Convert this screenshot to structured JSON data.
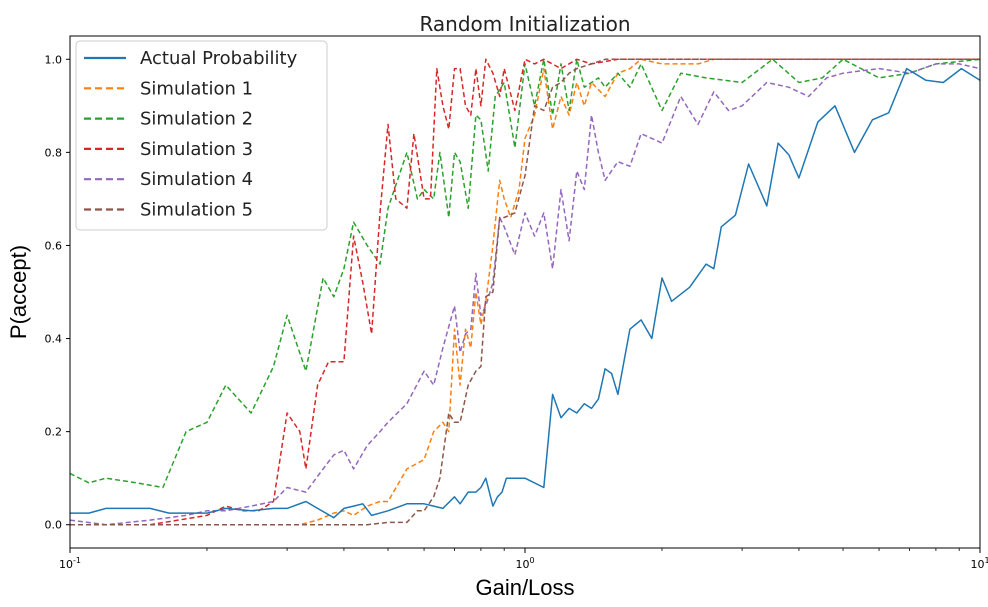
{
  "chart_data": {
    "type": "line",
    "title": "Random Initialization",
    "xlabel": "Gain/Loss",
    "ylabel": "P(accept)",
    "xscale": "log",
    "xlim": [
      0.1,
      10
    ],
    "ylim": [
      -0.05,
      1.05
    ],
    "grid": false,
    "legend_position": "upper-left",
    "x_tick_labels": [
      "10^-1",
      "10^0",
      "10^1"
    ],
    "y_tick_labels": [
      "0.0",
      "0.2",
      "0.4",
      "0.6",
      "0.8",
      "1.0"
    ],
    "series": [
      {
        "name": "Actual Probability",
        "color": "#1f77b4",
        "style": "solid",
        "x": [
          0.1,
          0.11,
          0.12,
          0.135,
          0.15,
          0.165,
          0.18,
          0.2,
          0.22,
          0.25,
          0.28,
          0.3,
          0.33,
          0.35,
          0.38,
          0.4,
          0.42,
          0.44,
          0.46,
          0.5,
          0.55,
          0.6,
          0.63,
          0.66,
          0.7,
          0.72,
          0.75,
          0.78,
          0.8,
          0.82,
          0.85,
          0.87,
          0.89,
          0.91,
          1.0,
          1.1,
          1.15,
          1.2,
          1.25,
          1.3,
          1.35,
          1.4,
          1.45,
          1.5,
          1.55,
          1.6,
          1.7,
          1.8,
          1.9,
          2.0,
          2.1,
          2.3,
          2.5,
          2.6,
          2.7,
          2.9,
          3.1,
          3.4,
          3.6,
          3.8,
          4.0,
          4.4,
          4.8,
          5.3,
          5.8,
          6.3,
          6.9,
          7.6,
          8.3,
          9.1,
          10
        ],
        "y": [
          0.025,
          0.025,
          0.035,
          0.035,
          0.035,
          0.025,
          0.025,
          0.025,
          0.035,
          0.03,
          0.035,
          0.035,
          0.05,
          0.035,
          0.015,
          0.035,
          0.04,
          0.045,
          0.02,
          0.03,
          0.045,
          0.045,
          0.04,
          0.035,
          0.06,
          0.045,
          0.07,
          0.07,
          0.08,
          0.1,
          0.04,
          0.06,
          0.07,
          0.1,
          0.1,
          0.08,
          0.28,
          0.23,
          0.25,
          0.24,
          0.26,
          0.25,
          0.27,
          0.335,
          0.325,
          0.28,
          0.42,
          0.44,
          0.4,
          0.53,
          0.48,
          0.51,
          0.56,
          0.55,
          0.64,
          0.665,
          0.775,
          0.685,
          0.82,
          0.795,
          0.745,
          0.865,
          0.9,
          0.8,
          0.87,
          0.885,
          0.98,
          0.955,
          0.95,
          0.98,
          0.955
        ]
      },
      {
        "name": "Simulation 1",
        "color": "#ff7f0e",
        "style": "dashed",
        "x": [
          0.1,
          0.15,
          0.2,
          0.25,
          0.3,
          0.32,
          0.35,
          0.38,
          0.4,
          0.42,
          0.45,
          0.48,
          0.5,
          0.55,
          0.6,
          0.63,
          0.66,
          0.68,
          0.7,
          0.72,
          0.74,
          0.76,
          0.78,
          0.8,
          0.82,
          0.85,
          0.88,
          0.9,
          0.93,
          0.97,
          1.0,
          1.05,
          1.1,
          1.15,
          1.2,
          1.25,
          1.3,
          1.35,
          1.4,
          1.5,
          1.6,
          1.7,
          1.8,
          2.0,
          2.2,
          2.4,
          2.6,
          3,
          4,
          5,
          7,
          10
        ],
        "y": [
          0.0,
          0.0,
          0.0,
          0.0,
          0.0,
          0.0,
          0.01,
          0.025,
          0.03,
          0.02,
          0.04,
          0.05,
          0.05,
          0.12,
          0.14,
          0.2,
          0.22,
          0.2,
          0.42,
          0.3,
          0.42,
          0.38,
          0.5,
          0.43,
          0.48,
          0.6,
          0.74,
          0.7,
          0.66,
          0.72,
          0.83,
          0.88,
          0.98,
          0.85,
          0.92,
          0.88,
          0.95,
          0.9,
          0.95,
          0.92,
          0.97,
          0.98,
          1.0,
          0.99,
          0.99,
          0.99,
          1.0,
          1.0,
          1.0,
          1.0,
          1.0,
          1.0
        ]
      },
      {
        "name": "Simulation 2",
        "color": "#2ca02c",
        "style": "dashed",
        "x": [
          0.1,
          0.11,
          0.12,
          0.14,
          0.16,
          0.18,
          0.2,
          0.22,
          0.25,
          0.28,
          0.3,
          0.33,
          0.36,
          0.38,
          0.4,
          0.42,
          0.45,
          0.48,
          0.5,
          0.55,
          0.58,
          0.6,
          0.63,
          0.65,
          0.68,
          0.7,
          0.72,
          0.75,
          0.78,
          0.8,
          0.83,
          0.86,
          0.9,
          0.95,
          1.0,
          1.05,
          1.1,
          1.15,
          1.2,
          1.25,
          1.3,
          1.35,
          1.4,
          1.45,
          1.5,
          1.6,
          1.7,
          1.8,
          2.0,
          2.2,
          2.5,
          3.0,
          3.5,
          4.0,
          4.5,
          5.0,
          6.0,
          7.0,
          8.0,
          10
        ],
        "y": [
          0.11,
          0.09,
          0.1,
          0.09,
          0.08,
          0.2,
          0.22,
          0.3,
          0.24,
          0.34,
          0.45,
          0.33,
          0.53,
          0.49,
          0.55,
          0.65,
          0.6,
          0.56,
          0.68,
          0.8,
          0.7,
          0.72,
          0.7,
          0.8,
          0.66,
          0.8,
          0.78,
          0.68,
          0.88,
          0.87,
          0.76,
          0.92,
          0.95,
          0.81,
          0.99,
          0.9,
          1.0,
          0.88,
          0.99,
          0.89,
          1.0,
          0.94,
          0.95,
          0.96,
          0.94,
          0.97,
          0.94,
          0.99,
          0.89,
          0.97,
          0.96,
          0.95,
          1.0,
          0.95,
          0.96,
          1.0,
          0.96,
          0.97,
          0.99,
          1.0
        ]
      },
      {
        "name": "Simulation 3",
        "color": "#d62728",
        "style": "dashed",
        "x": [
          0.1,
          0.15,
          0.2,
          0.22,
          0.24,
          0.26,
          0.28,
          0.3,
          0.32,
          0.33,
          0.35,
          0.37,
          0.4,
          0.42,
          0.44,
          0.46,
          0.48,
          0.5,
          0.52,
          0.55,
          0.57,
          0.6,
          0.62,
          0.64,
          0.66,
          0.68,
          0.7,
          0.72,
          0.74,
          0.76,
          0.78,
          0.8,
          0.82,
          0.85,
          0.88,
          0.9,
          0.95,
          1.0,
          1.05,
          1.1,
          1.2,
          1.3,
          1.4,
          1.6,
          1.8,
          2.0,
          3.0,
          4.0,
          10
        ],
        "y": [
          0.0,
          0.0,
          0.02,
          0.04,
          0.03,
          0.03,
          0.05,
          0.24,
          0.2,
          0.12,
          0.3,
          0.35,
          0.35,
          0.62,
          0.52,
          0.41,
          0.67,
          0.86,
          0.7,
          0.68,
          0.84,
          0.7,
          0.7,
          0.98,
          0.9,
          0.85,
          0.98,
          0.98,
          0.9,
          0.88,
          0.98,
          0.9,
          1.0,
          0.97,
          0.92,
          0.98,
          0.89,
          1.0,
          0.99,
          1.0,
          0.98,
          1.0,
          0.99,
          1.0,
          1.0,
          1.0,
          1.0,
          1.0,
          1.0
        ]
      },
      {
        "name": "Simulation 4",
        "color": "#9467bd",
        "style": "dashed",
        "x": [
          0.1,
          0.12,
          0.15,
          0.18,
          0.2,
          0.22,
          0.25,
          0.28,
          0.3,
          0.33,
          0.36,
          0.38,
          0.4,
          0.42,
          0.45,
          0.48,
          0.5,
          0.55,
          0.6,
          0.63,
          0.66,
          0.7,
          0.72,
          0.74,
          0.76,
          0.78,
          0.8,
          0.82,
          0.85,
          0.88,
          0.9,
          0.95,
          1.0,
          1.05,
          1.1,
          1.15,
          1.2,
          1.25,
          1.3,
          1.35,
          1.4,
          1.45,
          1.5,
          1.6,
          1.7,
          1.8,
          1.9,
          2.0,
          2.2,
          2.4,
          2.6,
          2.8,
          3.0,
          3.4,
          3.8,
          4.2,
          4.6,
          5.0,
          6.0,
          7.0,
          8.0,
          9.0,
          10
        ],
        "y": [
          0.01,
          0.0,
          0.01,
          0.02,
          0.03,
          0.03,
          0.04,
          0.05,
          0.08,
          0.07,
          0.12,
          0.15,
          0.16,
          0.12,
          0.17,
          0.2,
          0.22,
          0.26,
          0.33,
          0.3,
          0.38,
          0.47,
          0.37,
          0.41,
          0.42,
          0.54,
          0.45,
          0.47,
          0.52,
          0.66,
          0.64,
          0.58,
          0.67,
          0.62,
          0.67,
          0.55,
          0.72,
          0.61,
          0.76,
          0.72,
          0.88,
          0.8,
          0.74,
          0.78,
          0.77,
          0.84,
          0.83,
          0.82,
          0.92,
          0.86,
          0.93,
          0.89,
          0.9,
          0.95,
          0.94,
          0.92,
          0.96,
          0.97,
          0.98,
          0.97,
          0.99,
          0.99,
          0.98
        ]
      },
      {
        "name": "Simulation 5",
        "color": "#8c564b",
        "style": "dashed",
        "x": [
          0.1,
          0.15,
          0.2,
          0.25,
          0.3,
          0.35,
          0.4,
          0.45,
          0.5,
          0.55,
          0.58,
          0.6,
          0.63,
          0.65,
          0.68,
          0.7,
          0.72,
          0.75,
          0.78,
          0.8,
          0.82,
          0.85,
          0.88,
          0.9,
          0.95,
          1.0,
          1.05,
          1.1,
          1.15,
          1.2,
          1.25,
          1.3,
          1.4,
          1.5,
          1.6,
          2.0,
          3.0,
          10
        ],
        "y": [
          0.0,
          0.0,
          0.0,
          0.0,
          0.0,
          0.0,
          0.0,
          0.0,
          0.005,
          0.005,
          0.03,
          0.03,
          0.06,
          0.1,
          0.24,
          0.22,
          0.22,
          0.3,
          0.33,
          0.34,
          0.49,
          0.5,
          0.66,
          0.66,
          0.67,
          0.75,
          0.9,
          0.89,
          0.94,
          0.95,
          0.97,
          0.98,
          0.99,
          1.0,
          1.0,
          1.0,
          1.0,
          1.0
        ]
      }
    ]
  }
}
